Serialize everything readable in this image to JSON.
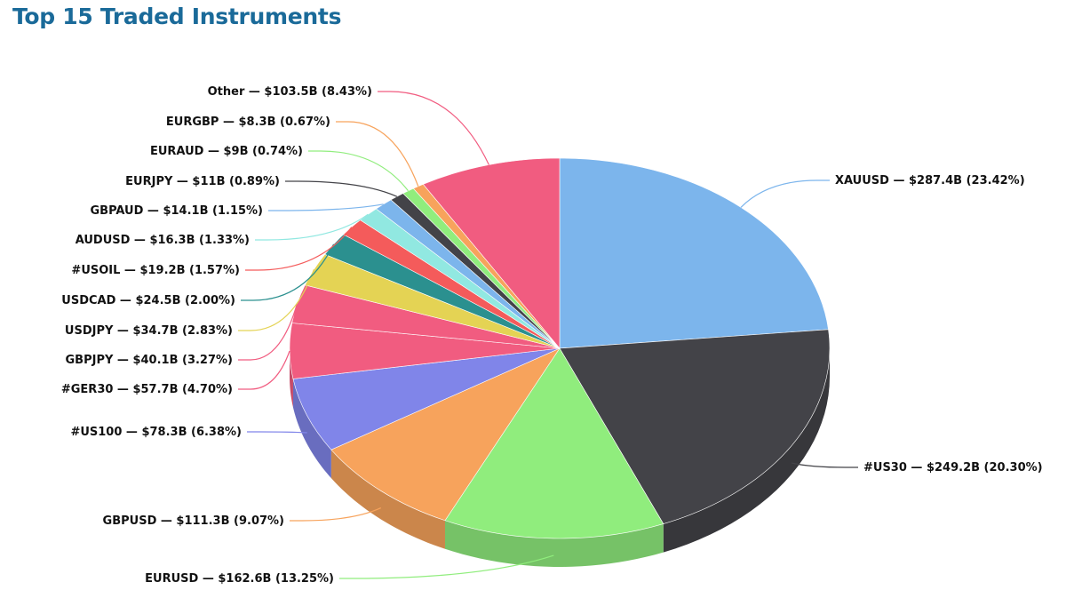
{
  "chart_data": {
    "type": "pie",
    "title": "Top 15 Traded Instruments",
    "slices": [
      {
        "name": "XAUUSD",
        "value": 287.4,
        "label": "XAUUSD — $287.4B (23.42%)",
        "color": "#7cb5ec"
      },
      {
        "name": "#US30",
        "value": 249.2,
        "label": "#US30 — $249.2B (20.30%)",
        "color": "#434348"
      },
      {
        "name": "EURUSD",
        "value": 162.6,
        "label": "EURUSD — $162.6B (13.25%)",
        "color": "#90ed7d"
      },
      {
        "name": "GBPUSD",
        "value": 111.3,
        "label": "GBPUSD — $111.3B (9.07%)",
        "color": "#f7a35c"
      },
      {
        "name": "#US100",
        "value": 78.3,
        "label": "#US100 — $78.3B (6.38%)",
        "color": "#8085e9"
      },
      {
        "name": "#GER30",
        "value": 57.7,
        "label": "#GER30 — $57.7B (4.70%)",
        "color": "#f15c80"
      },
      {
        "name": "GBPJPY",
        "value": 40.1,
        "label": "GBPJPY — $40.1B (3.27%)",
        "color": "#f15c80"
      },
      {
        "name": "USDJPY",
        "value": 34.7,
        "label": "USDJPY — $34.7B (2.83%)",
        "color": "#e4d354"
      },
      {
        "name": "USDCAD",
        "value": 24.5,
        "label": "USDCAD — $24.5B (2.00%)",
        "color": "#2b908f"
      },
      {
        "name": "#USOIL",
        "value": 19.2,
        "label": "#USOIL — $19.2B (1.57%)",
        "color": "#f45b5b"
      },
      {
        "name": "AUDUSD",
        "value": 16.3,
        "label": "AUDUSD — $16.3B (1.33%)",
        "color": "#91e8e1"
      },
      {
        "name": "GBPAUD",
        "value": 14.1,
        "label": "GBPAUD — $14.1B (1.15%)",
        "color": "#7cb5ec"
      },
      {
        "name": "EURJPY",
        "value": 11,
        "label": "EURJPY — $11B (0.89%)",
        "color": "#434348"
      },
      {
        "name": "EURAUD",
        "value": 9,
        "label": "EURAUD — $9B (0.74%)",
        "color": "#90ed7d"
      },
      {
        "name": "EURGBP",
        "value": 8.3,
        "label": "EURGBP — $8.3B (0.67%)",
        "color": "#f7a35c"
      },
      {
        "name": "Other",
        "value": 103.5,
        "label": "Other — $103.5B (8.43%)",
        "color": "#f15c80"
      }
    ]
  }
}
